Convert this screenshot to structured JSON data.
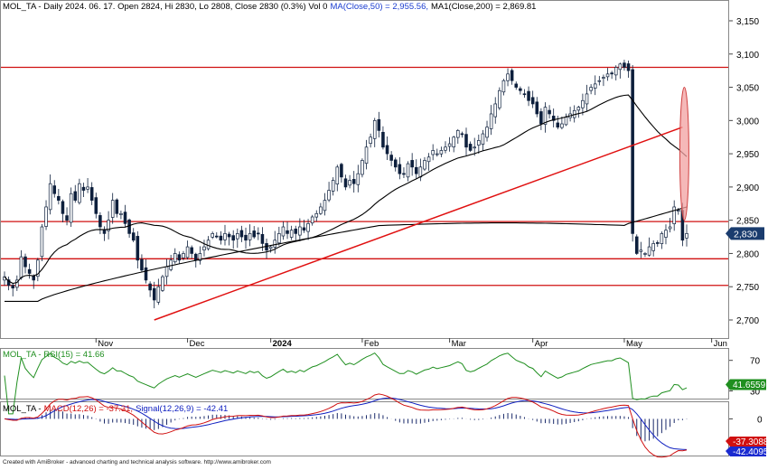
{
  "title_prefix": "MOL_TA - Daily 2024. 06. 17. Open 2824, Hi 2830, Lo 2808, Close 2830 (0.3%) Vol 0",
  "ma50_label": "MA(Close,50) = 2,955.56,",
  "ma200_label": "MA1(Close,200) = 2,869.81",
  "last_price_badge": "2,830",
  "footer": "Created with AmiBroker - advanced charting and technical analysis software. http://www.amibroker.com",
  "colors": {
    "up": "#ffffff",
    "down": "#0d1f3c",
    "wick": "#0d1f3c",
    "ma50": "#000000",
    "ma200": "#000000",
    "hline": "#d01010",
    "trendline": "#e01010",
    "ellipse_fill": "#f2a0a0",
    "rsi": "#1f8f1f",
    "macd": "#d01010",
    "signal": "#1020c0",
    "hist": "#1a2a6a",
    "badge_price": "#1a3c6e",
    "badge_rsi": "#1f8f1f",
    "badge_macd": "#d01010",
    "badge_signal": "#1a2ad0"
  },
  "chart_data": [
    {
      "type": "candlestick",
      "ylim": [
        2680,
        3170
      ],
      "y_ticks": [
        "3,150",
        "3,100",
        "3,050",
        "3,000",
        "2,950",
        "2,900",
        "2,850",
        "2,800",
        "2,750",
        "2,700"
      ],
      "x_month_labels": [
        {
          "label": "Nov",
          "bar": 22
        },
        {
          "label": "Dec",
          "bar": 44
        },
        {
          "label": "2024",
          "bar": 64
        },
        {
          "label": "Feb",
          "bar": 86
        },
        {
          "label": "Mar",
          "bar": 107
        },
        {
          "label": "Apr",
          "bar": 127
        },
        {
          "label": "May",
          "bar": 149
        },
        {
          "label": "Jun",
          "bar": 170
        }
      ],
      "horizontal_lines": [
        3080,
        2848,
        2792,
        2752
      ],
      "trendline": {
        "from": {
          "bar": 36,
          "price": 2700
        },
        "to": {
          "bar": 163,
          "price": 2990
        }
      },
      "gap_marker": {
        "bar": 163,
        "price_top": 3050,
        "price_bottom": 2850
      },
      "closes": [
        2765,
        2752,
        2748,
        2760,
        2795,
        2780,
        2770,
        2760,
        2790,
        2840,
        2870,
        2905,
        2890,
        2880,
        2860,
        2850,
        2890,
        2880,
        2905,
        2895,
        2900,
        2880,
        2860,
        2840,
        2830,
        2850,
        2880,
        2860,
        2860,
        2845,
        2830,
        2820,
        2790,
        2775,
        2760,
        2745,
        2730,
        2750,
        2765,
        2780,
        2790,
        2800,
        2790,
        2800,
        2810,
        2800,
        2790,
        2800,
        2810,
        2820,
        2830,
        2825,
        2820,
        2830,
        2825,
        2820,
        2830,
        2825,
        2820,
        2830,
        2825,
        2830,
        2815,
        2805,
        2810,
        2820,
        2830,
        2840,
        2830,
        2835,
        2830,
        2840,
        2835,
        2845,
        2855,
        2860,
        2870,
        2880,
        2895,
        2910,
        2930,
        2915,
        2900,
        2910,
        2905,
        2920,
        2940,
        2960,
        2975,
        3000,
        2985,
        2960,
        2950,
        2940,
        2930,
        2920,
        2920,
        2935,
        2930,
        2920,
        2930,
        2940,
        2945,
        2955,
        2950,
        2955,
        2960,
        2965,
        2975,
        2985,
        2980,
        2960,
        2955,
        2960,
        2970,
        2980,
        2990,
        3010,
        3025,
        3045,
        3060,
        3070,
        3060,
        3050,
        3045,
        3040,
        3030,
        3025,
        3010,
        2995,
        3020,
        3010,
        3000,
        2990,
        2995,
        3005,
        3010,
        3015,
        3020,
        3030,
        3040,
        3050,
        3055,
        3060,
        3065,
        3070,
        3070,
        3080,
        3085,
        3080,
        3075,
        2830,
        2800,
        2805,
        2800,
        2810,
        2815,
        2815,
        2830,
        2835,
        2840,
        2870,
        2865,
        2820,
        2830
      ],
      "series": [
        {
          "name": "MA(Close,50)",
          "value": 2955.56
        },
        {
          "name": "MA1(Close,200)",
          "value": 2869.81
        }
      ]
    },
    {
      "type": "line",
      "label": "MOL_TA - RSI(15) = 41.66",
      "series": [
        {
          "name": "RSI(15)",
          "value": 41.66
        }
      ],
      "ylim": [
        20,
        85
      ],
      "y_ticks": [
        "70",
        "30"
      ],
      "badge": "41.6559"
    },
    {
      "type": "line",
      "label_prefix": "MOL_TA -",
      "macd_label": "MACD(12,26) = -37.31,",
      "signal_label": "Signal(12,26,9) = -42.41",
      "series": [
        {
          "name": "MACD(12,26)",
          "value": -37.31
        },
        {
          "name": "Signal(12,26,9)",
          "value": -42.41
        }
      ],
      "ylim": [
        -55,
        25
      ],
      "y_ticks": [
        "0"
      ],
      "badge_macd": "-37.3088",
      "badge_signal": "-42.4095"
    }
  ]
}
